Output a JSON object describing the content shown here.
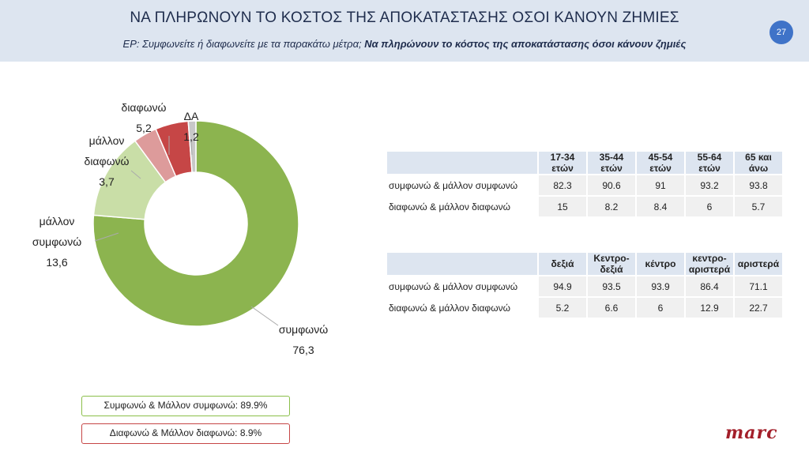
{
  "header": {
    "title": "ΝΑ ΠΛΗΡΩΝΟΥΝ ΤΟ ΚΟΣΤΟΣ ΤΗΣ ΑΠΟΚΑΤΑΣΤΑΣΗΣ ΟΣΟΙ ΚΑΝΟΥΝ ΖΗΜΙΕΣ",
    "subtitle_prefix": "ΕΡ: Συμφωνείτε ή διαφωνείτε με τα παρακάτω μέτρα;",
    "subtitle_bold": "Να πληρώνουν το κόστος της αποκατάστασης όσοι κάνουν ζημιές",
    "page_number": "27"
  },
  "chart_data": {
    "type": "pie",
    "donut": true,
    "slices": [
      {
        "label": "συμφωνώ",
        "value": 76.3,
        "value_text": "76,3",
        "color": "#8cb44f"
      },
      {
        "label": "μάλλον συμφωνώ",
        "value": 13.6,
        "value_text": "13,6",
        "color": "#c9dea7"
      },
      {
        "label": "μάλλον διαφωνώ",
        "value": 3.7,
        "value_text": "3,7",
        "color": "#dd9b9b"
      },
      {
        "label": "διαφωνώ",
        "value": 5.2,
        "value_text": "5,2",
        "color": "#c64646"
      },
      {
        "label": "ΔΑ",
        "value": 1.2,
        "value_text": "1,2",
        "color": "#c8c8c8"
      }
    ]
  },
  "summary": {
    "agree": "Συμφωνώ & Μάλλον συμφωνώ: 89.9%",
    "disagree": "Διαφωνώ & Μάλλον διαφωνώ: 8.9%"
  },
  "age_table": {
    "columns": [
      "17-34 ετών",
      "35-44 ετών",
      "45-54 ετών",
      "55-64 ετών",
      "65 και άνω"
    ],
    "rows": [
      {
        "label": "συμφωνώ & μάλλον συμφωνώ",
        "values": [
          "82.3",
          "90.6",
          "91",
          "93.2",
          "93.8"
        ]
      },
      {
        "label": "διαφωνώ & μάλλον διαφωνώ",
        "values": [
          "15",
          "8.2",
          "8.4",
          "6",
          "5.7"
        ]
      }
    ]
  },
  "ideology_table": {
    "columns": [
      "δεξιά",
      "Κεντρο-δεξιά",
      "κέντρο",
      "κεντρο-αριστερά",
      "αριστερά"
    ],
    "rows": [
      {
        "label": "συμφωνώ & μάλλον συμφωνώ",
        "values": [
          "94.9",
          "93.5",
          "93.9",
          "86.4",
          "71.1"
        ]
      },
      {
        "label": "διαφωνώ & μάλλον διαφωνώ",
        "values": [
          "5.2",
          "6.6",
          "6",
          "12.9",
          "22.7"
        ]
      }
    ]
  },
  "logo": "marc"
}
